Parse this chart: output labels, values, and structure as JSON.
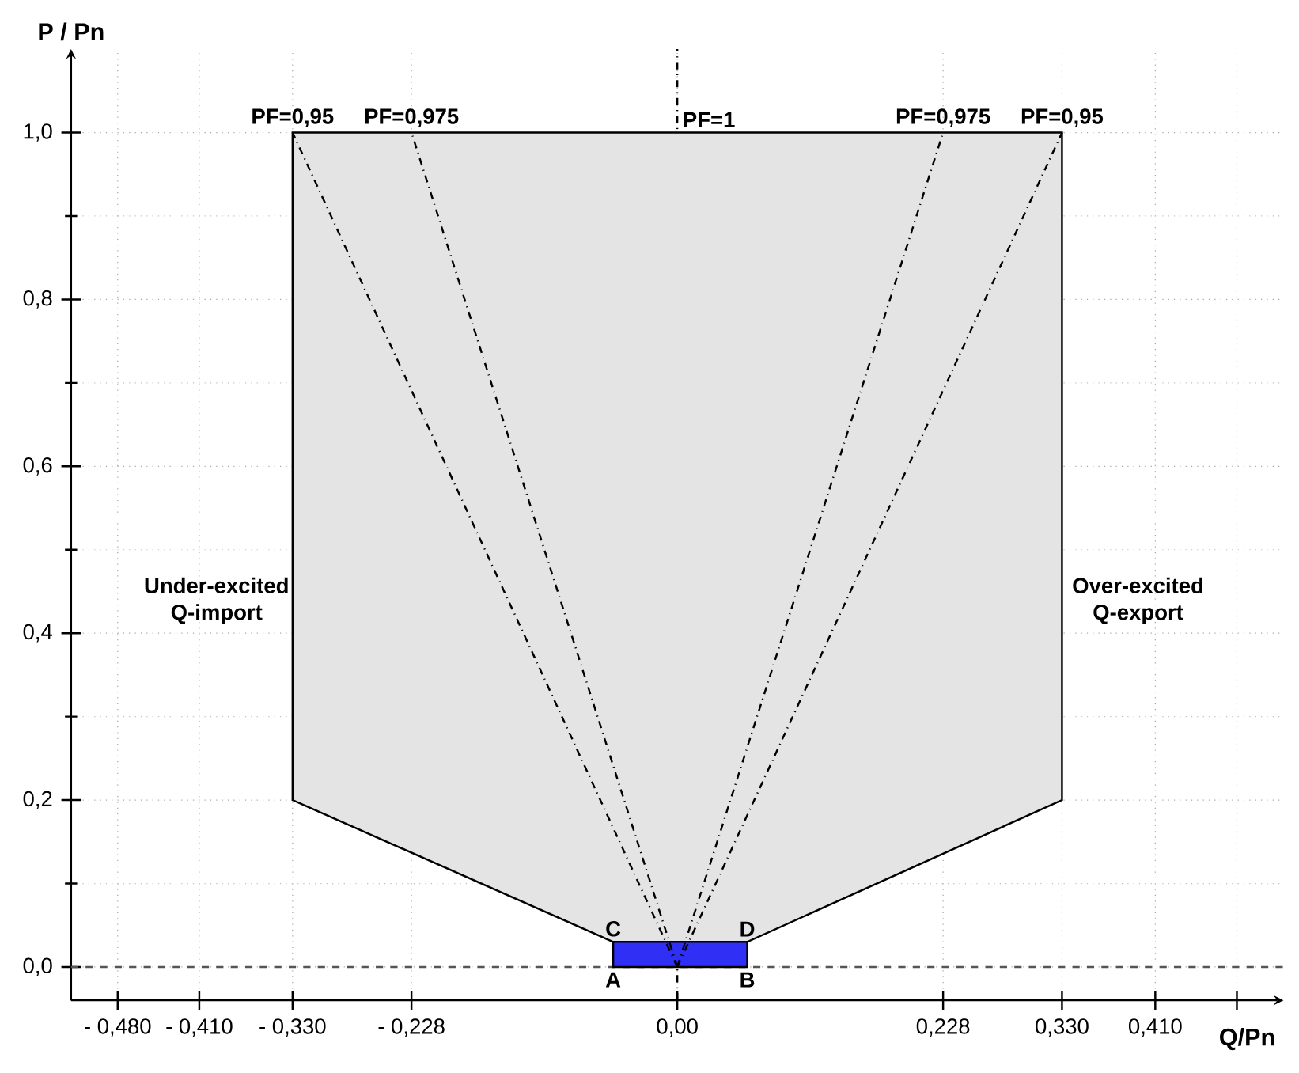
{
  "chart_data": {
    "type": "line",
    "xlabel": "Q/Pn",
    "ylabel": "P / Pn",
    "xlim": [
      -0.52,
      0.52
    ],
    "ylim": [
      -0.04,
      1.1
    ],
    "xticks": [
      {
        "value": -0.48,
        "label": "- 0,480"
      },
      {
        "value": -0.41,
        "label": "- 0,410"
      },
      {
        "value": -0.33,
        "label": "- 0,330"
      },
      {
        "value": -0.228,
        "label": "- 0,228"
      },
      {
        "value": 0,
        "label": "0,00"
      },
      {
        "value": 0.228,
        "label": "0,228"
      },
      {
        "value": 0.33,
        "label": "0,330"
      },
      {
        "value": 0.41,
        "label": "0,410"
      },
      {
        "value": 0.48,
        "label": null
      }
    ],
    "yticks": [
      {
        "value": 0,
        "label": "0,0"
      },
      {
        "value": 0.2,
        "label": "0,2"
      },
      {
        "value": 0.4,
        "label": "0,4"
      },
      {
        "value": 0.6,
        "label": "0,6"
      },
      {
        "value": 0.8,
        "label": "0,8"
      },
      {
        "value": 1.0,
        "label": "1,0"
      }
    ],
    "grid": true,
    "marker": "none",
    "series": [
      {
        "type": "area",
        "color": "#e4e4e4",
        "x": [
          -0.33,
          0.33,
          0.33,
          0.06,
          -0.055,
          -0.33
        ],
        "values": [
          1,
          1,
          0.2,
          0.03,
          0.03,
          0.2
        ]
      },
      {
        "type": "area",
        "color": "#2f2ff5",
        "x": [
          -0.055,
          0.06,
          0.06,
          -0.055
        ],
        "values": [
          0.03,
          0.03,
          0,
          0
        ]
      },
      {
        "color": "#000000",
        "line_style": "dashed",
        "x": [
          0,
          -0.33
        ],
        "values": [
          0,
          1
        ]
      },
      {
        "color": "#000000",
        "line_style": "dashed",
        "x": [
          0,
          -0.228
        ],
        "values": [
          0,
          1
        ]
      },
      {
        "color": "#000000",
        "line_style": "dashed",
        "x": [
          0,
          0.228
        ],
        "values": [
          0,
          1
        ]
      },
      {
        "color": "#000000",
        "line_style": "dashed",
        "x": [
          0,
          0.33
        ],
        "values": [
          0,
          1
        ]
      }
    ],
    "ref_lines": [
      {
        "axis": "x",
        "value": 0,
        "color": "#000000",
        "line_style": "dashed"
      },
      {
        "axis": "y",
        "value": 0,
        "color": "#555555",
        "line_style": "dashed"
      }
    ],
    "annotations": [
      {
        "text": "PF=0,95",
        "x": -0.33,
        "y": 1
      },
      {
        "text": "PF=0,975",
        "x": -0.228,
        "y": 1
      },
      {
        "text": "PF=1",
        "x": 0,
        "y": 1
      },
      {
        "text": "PF=0,975",
        "x": 0.228,
        "y": 1
      },
      {
        "text": "PF=0,95",
        "x": 0.33,
        "y": 1
      },
      {
        "text": "A",
        "x": -0.055,
        "y": 0
      },
      {
        "text": "B",
        "x": 0.06,
        "y": 0
      },
      {
        "text": "C",
        "x": -0.055,
        "y": 0.03
      },
      {
        "text": "D",
        "x": 0.06,
        "y": 0.03
      },
      "Under-excited Q-import",
      "Over-excited Q-export"
    ]
  }
}
